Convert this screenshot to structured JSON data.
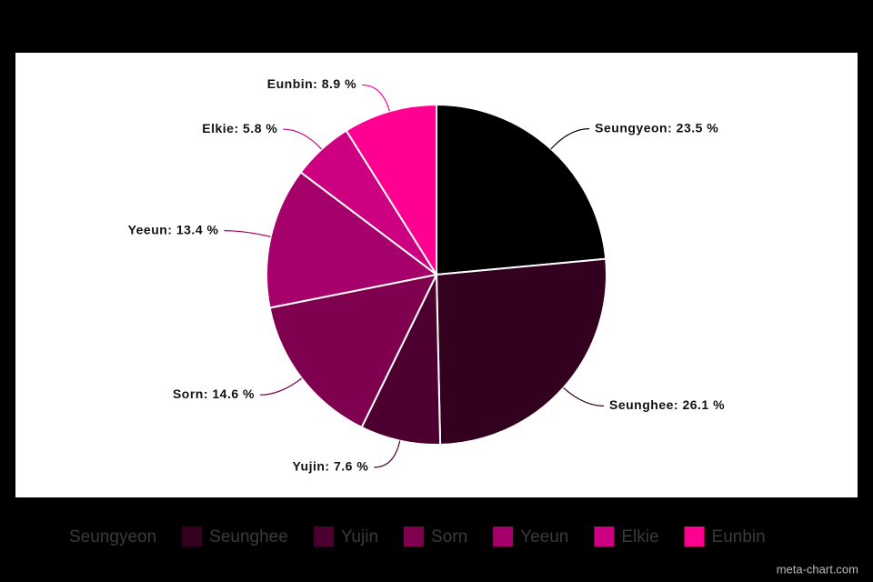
{
  "chart_data": {
    "type": "pie",
    "categories": [
      "Seungyeon",
      "Seunghee",
      "Yujin",
      "Sorn",
      "Yeeun",
      "Elkie",
      "Eunbin"
    ],
    "values": [
      23.5,
      26.1,
      7.6,
      14.6,
      13.4,
      5.8,
      8.9
    ],
    "value_labels": [
      "Seungyeon: 23.5 %",
      "Seunghee: 26.1 %",
      "Yujin: 7.6 %",
      "Sorn: 14.6 %",
      "Yeeun: 13.4 %",
      "Elkie: 5.8 %",
      "Eunbin: 8.9 %"
    ],
    "colors": [
      "#000000",
      "#33001f",
      "#4d0030",
      "#800050",
      "#a6006a",
      "#cc0080",
      "#ff0090"
    ],
    "legend": "bottom",
    "watermark": "meta-chart.com"
  }
}
